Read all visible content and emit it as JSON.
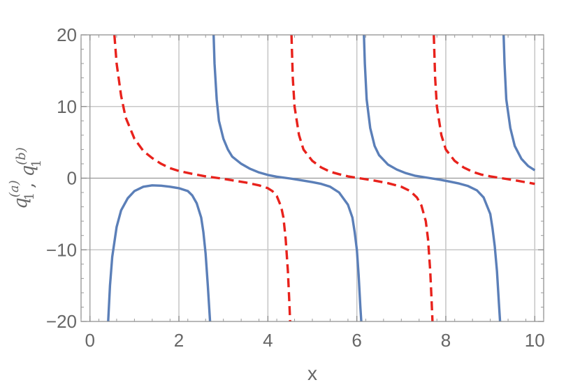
{
  "chart_data": {
    "type": "line",
    "xlabel": "x",
    "ylabel": {
      "parts": [
        {
          "base": "q",
          "sub": "1",
          "sup": "(a)"
        },
        {
          "sep": ","
        },
        {
          "base": "q",
          "sub": "1",
          "sup": "(b)"
        }
      ]
    },
    "xlim": [
      -0.2,
      10.2
    ],
    "ylim": [
      -20,
      20
    ],
    "x_ticks": [
      0,
      2,
      4,
      6,
      8,
      10
    ],
    "x_tick_labels": [
      "0",
      "2",
      "4",
      "6",
      "8",
      "10"
    ],
    "y_ticks": [
      -20,
      -10,
      0,
      10,
      20
    ],
    "y_tick_labels": [
      "−20",
      "−10",
      "0",
      "10",
      "20"
    ],
    "grid": true,
    "series": [
      {
        "color": "#5b7fb8",
        "dash": "solid",
        "points": [
          [
            0.41,
            -20
          ],
          [
            0.45,
            -15
          ],
          [
            0.5,
            -11
          ],
          [
            0.6,
            -6.8
          ],
          [
            0.7,
            -4.5
          ],
          [
            0.85,
            -2.8
          ],
          [
            1.0,
            -1.8
          ],
          [
            1.2,
            -1.2
          ],
          [
            1.4,
            -1.0
          ],
          [
            1.6,
            -1.05
          ],
          [
            1.8,
            -1.2
          ],
          [
            2.0,
            -1.4
          ],
          [
            2.2,
            -1.8
          ],
          [
            2.3,
            -2.4
          ],
          [
            2.4,
            -3.5
          ],
          [
            2.5,
            -5.5
          ],
          [
            2.55,
            -7.5
          ],
          [
            2.6,
            -10.5
          ],
          [
            2.65,
            -15
          ],
          [
            2.7,
            -20
          ],
          null,
          [
            2.78,
            20
          ],
          [
            2.8,
            16
          ],
          [
            2.85,
            11
          ],
          [
            2.9,
            8
          ],
          [
            3.0,
            5.5
          ],
          [
            3.1,
            4
          ],
          [
            3.2,
            3
          ],
          [
            3.4,
            2
          ],
          [
            3.6,
            1.3
          ],
          [
            3.8,
            0.8
          ],
          [
            4.0,
            0.45
          ],
          [
            4.2,
            0.2
          ],
          [
            4.5,
            -0.05
          ],
          [
            4.8,
            -0.35
          ],
          [
            5.0,
            -0.55
          ],
          [
            5.2,
            -0.8
          ],
          [
            5.4,
            -1.2
          ],
          [
            5.6,
            -2.0
          ],
          [
            5.8,
            -3.7
          ],
          [
            5.9,
            -5.5
          ],
          [
            5.95,
            -7.5
          ],
          [
            6.0,
            -10
          ],
          [
            6.04,
            -13.5
          ],
          [
            6.08,
            -18
          ],
          [
            6.1,
            -20
          ],
          null,
          [
            6.16,
            20
          ],
          [
            6.18,
            16
          ],
          [
            6.22,
            11
          ],
          [
            6.3,
            7
          ],
          [
            6.4,
            4.5
          ],
          [
            6.5,
            3.2
          ],
          [
            6.7,
            1.9
          ],
          [
            6.9,
            1.2
          ],
          [
            7.1,
            0.7
          ],
          [
            7.3,
            0.35
          ],
          [
            7.6,
            0.05
          ],
          [
            7.9,
            -0.25
          ],
          [
            8.1,
            -0.5
          ],
          [
            8.3,
            -0.75
          ],
          [
            8.5,
            -1.1
          ],
          [
            8.7,
            -1.7
          ],
          [
            8.85,
            -2.7
          ],
          [
            9.0,
            -5
          ],
          [
            9.05,
            -7
          ],
          [
            9.1,
            -9.5
          ],
          [
            9.15,
            -13
          ],
          [
            9.2,
            -18
          ],
          [
            9.22,
            -20
          ],
          null,
          [
            9.3,
            20
          ],
          [
            9.32,
            16
          ],
          [
            9.36,
            11
          ],
          [
            9.45,
            7
          ],
          [
            9.55,
            4.5
          ],
          [
            9.7,
            2.7
          ],
          [
            9.85,
            1.7
          ],
          [
            10.0,
            1.1
          ]
        ]
      },
      {
        "color": "#e8221c",
        "dash": "dashed",
        "points": [
          [
            0.55,
            20
          ],
          [
            0.6,
            16
          ],
          [
            0.7,
            11.5
          ],
          [
            0.8,
            8.5
          ],
          [
            1.0,
            5.5
          ],
          [
            1.2,
            3.8
          ],
          [
            1.4,
            2.8
          ],
          [
            1.6,
            2.0
          ],
          [
            1.8,
            1.4
          ],
          [
            2.0,
            1.0
          ],
          [
            2.3,
            0.6
          ],
          [
            2.6,
            0.25
          ],
          [
            2.9,
            0.0
          ],
          [
            3.2,
            -0.3
          ],
          [
            3.5,
            -0.6
          ],
          [
            3.8,
            -1.0
          ],
          [
            4.0,
            -1.4
          ],
          [
            4.1,
            -1.8
          ],
          [
            4.2,
            -2.5
          ],
          [
            4.3,
            -4
          ],
          [
            4.35,
            -5.5
          ],
          [
            4.4,
            -8.5
          ],
          [
            4.45,
            -13
          ],
          [
            4.48,
            -17
          ],
          [
            4.5,
            -20
          ],
          null,
          [
            4.53,
            20
          ],
          [
            4.56,
            14
          ],
          [
            4.6,
            10
          ],
          [
            4.7,
            6
          ],
          [
            4.8,
            4
          ],
          [
            5.0,
            2.4
          ],
          [
            5.2,
            1.5
          ],
          [
            5.4,
            0.9
          ],
          [
            5.6,
            0.55
          ],
          [
            5.8,
            0.25
          ],
          [
            6.1,
            -0.05
          ],
          [
            6.4,
            -0.35
          ],
          [
            6.7,
            -0.7
          ],
          [
            7.0,
            -1.2
          ],
          [
            7.2,
            -1.8
          ],
          [
            7.35,
            -2.7
          ],
          [
            7.45,
            -3.8
          ],
          [
            7.55,
            -6
          ],
          [
            7.6,
            -8.5
          ],
          [
            7.65,
            -13
          ],
          [
            7.68,
            -17
          ],
          [
            7.7,
            -20
          ],
          null,
          [
            7.73,
            20
          ],
          [
            7.76,
            14
          ],
          [
            7.8,
            10
          ],
          [
            7.9,
            6
          ],
          [
            8.0,
            4
          ],
          [
            8.2,
            2.4
          ],
          [
            8.4,
            1.5
          ],
          [
            8.6,
            0.9
          ],
          [
            8.8,
            0.5
          ],
          [
            9.0,
            0.25
          ],
          [
            9.3,
            -0.05
          ],
          [
            9.6,
            -0.35
          ],
          [
            10.0,
            -0.8
          ]
        ]
      }
    ]
  }
}
